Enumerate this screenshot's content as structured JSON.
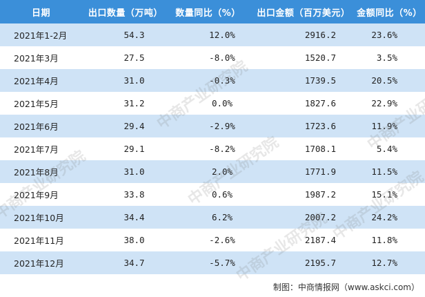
{
  "header": [
    "日期",
    "出口数量（万吨）",
    "数量同比（%）",
    "出口金额（百万美元）",
    "金额同比（%）"
  ],
  "rows": [
    {
      "date": "2021年1-2月",
      "qty": "54.3",
      "qty_yoy": "12.0%",
      "amount": "2916.2",
      "amount_yoy": "23.6%"
    },
    {
      "date": "2021年3月",
      "qty": "27.5",
      "qty_yoy": "-8.0%",
      "amount": "1520.7",
      "amount_yoy": "3.5%"
    },
    {
      "date": "2021年4月",
      "qty": "31.0",
      "qty_yoy": "-0.3%",
      "amount": "1739.5",
      "amount_yoy": "20.5%"
    },
    {
      "date": "2021年5月",
      "qty": "31.2",
      "qty_yoy": "0.0%",
      "amount": "1827.6",
      "amount_yoy": "22.9%"
    },
    {
      "date": "2021年6月",
      "qty": "29.4",
      "qty_yoy": "-2.9%",
      "amount": "1723.6",
      "amount_yoy": "11.9%"
    },
    {
      "date": "2021年7月",
      "qty": "29.1",
      "qty_yoy": "-8.2%",
      "amount": "1708.1",
      "amount_yoy": "5.4%"
    },
    {
      "date": "2021年8月",
      "qty": "31.0",
      "qty_yoy": "2.0%",
      "amount": "1771.9",
      "amount_yoy": "11.5%"
    },
    {
      "date": "2021年9月",
      "qty": "33.8",
      "qty_yoy": "0.6%",
      "amount": "1987.2",
      "amount_yoy": "15.1%"
    },
    {
      "date": "2021年10月",
      "qty": "34.4",
      "qty_yoy": "6.2%",
      "amount": "2007.2",
      "amount_yoy": "24.2%"
    },
    {
      "date": "2021年11月",
      "qty": "38.0",
      "qty_yoy": "-2.6%",
      "amount": "2187.4",
      "amount_yoy": "11.8%"
    },
    {
      "date": "2021年12月",
      "qty": "34.7",
      "qty_yoy": "-5.7%",
      "amount": "2195.7",
      "amount_yoy": "12.7%"
    }
  ],
  "footer": "制图：中商情报网（www.askci.com）",
  "watermark": "中商产业研究院",
  "colors": {
    "header_bg": "#3b8fd9",
    "stripe": "#cfe3f6"
  }
}
